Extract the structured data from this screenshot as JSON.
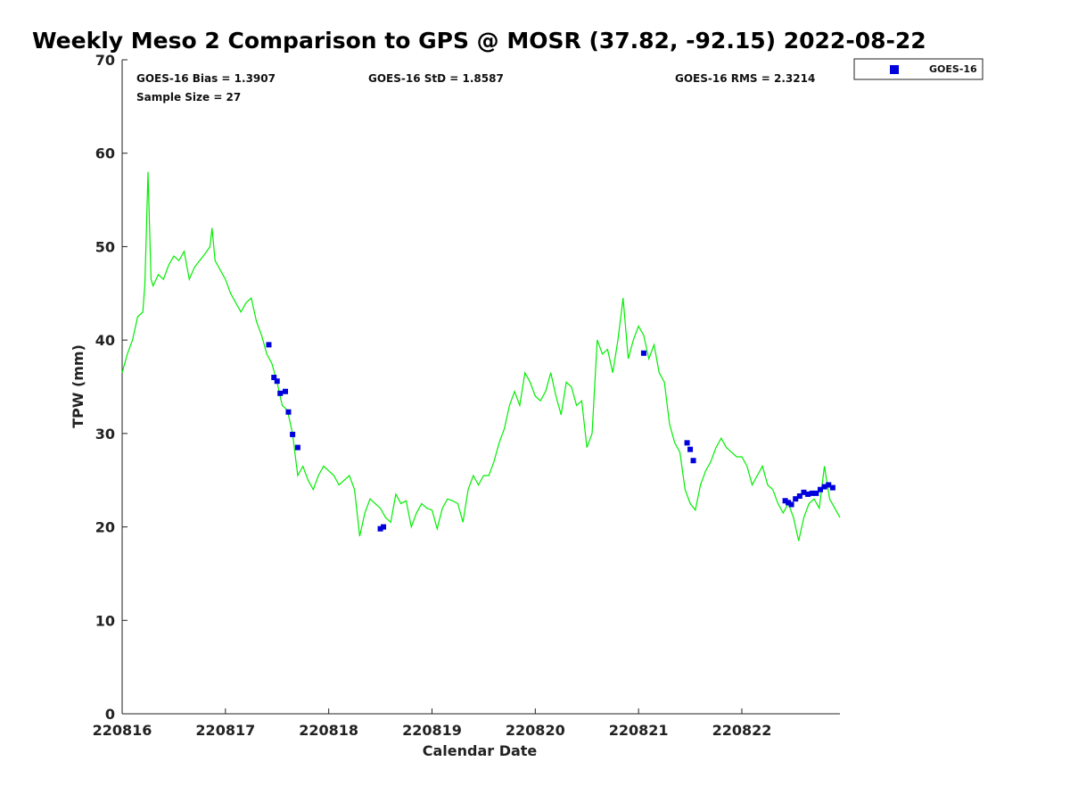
{
  "chart_data": {
    "type": "scatter",
    "title": "Weekly Meso 2 Comparison to GPS @ MOSR (37.82, -92.15) 2022-08-22",
    "xlabel": "Calendar Date",
    "ylabel": "TPW (mm)",
    "xlim": [
      0,
      6.95
    ],
    "ylim": [
      0,
      70
    ],
    "x_tick_labels": [
      "220816",
      "220817",
      "220818",
      "220819",
      "220820",
      "220821",
      "220822"
    ],
    "x_tick_values": [
      0,
      1,
      2,
      3,
      4,
      5,
      6
    ],
    "y_ticks": [
      0,
      10,
      20,
      30,
      40,
      50,
      60,
      70
    ],
    "stats": {
      "bias": "GOES-16 Bias = 1.3907",
      "std": "GOES-16 StD = 1.8587",
      "rms": "GOES-16 RMS = 2.3214",
      "sample": "Sample Size = 27"
    },
    "legend": {
      "placement": "top-right",
      "label": "GOES-16"
    },
    "colors": {
      "gps_line": "#00ee00",
      "goes_marker": "#0000dd"
    },
    "gps_series": {
      "x": [
        0.0,
        0.05,
        0.1,
        0.15,
        0.2,
        0.22,
        0.25,
        0.28,
        0.3,
        0.35,
        0.4,
        0.45,
        0.5,
        0.55,
        0.6,
        0.65,
        0.7,
        0.75,
        0.8,
        0.85,
        0.87,
        0.9,
        0.95,
        1.0,
        1.05,
        1.1,
        1.15,
        1.2,
        1.25,
        1.3,
        1.35,
        1.4,
        1.45,
        1.5,
        1.55,
        1.6,
        1.65,
        1.7,
        1.75,
        1.8,
        1.85,
        1.9,
        1.95,
        2.0,
        2.05,
        2.1,
        2.15,
        2.2,
        2.25,
        2.3,
        2.35,
        2.4,
        2.45,
        2.5,
        2.55,
        2.6,
        2.65,
        2.7,
        2.75,
        2.8,
        2.85,
        2.9,
        2.95,
        3.0,
        3.05,
        3.1,
        3.15,
        3.2,
        3.25,
        3.3,
        3.35,
        3.4,
        3.45,
        3.5,
        3.55,
        3.6,
        3.65,
        3.7,
        3.75,
        3.8,
        3.85,
        3.9,
        3.95,
        4.0,
        4.05,
        4.1,
        4.15,
        4.2,
        4.25,
        4.3,
        4.35,
        4.4,
        4.45,
        4.5,
        4.55,
        4.6,
        4.65,
        4.7,
        4.75,
        4.8,
        4.85,
        4.9,
        4.95,
        5.0,
        5.05,
        5.1,
        5.15,
        5.2,
        5.25,
        5.3,
        5.35,
        5.4,
        5.45,
        5.5,
        5.55,
        5.6,
        5.65,
        5.7,
        5.75,
        5.8,
        5.85,
        5.9,
        5.95,
        6.0,
        6.05,
        6.1,
        6.15,
        6.2,
        6.25,
        6.3,
        6.35,
        6.4,
        6.45,
        6.5,
        6.55,
        6.6,
        6.65,
        6.7,
        6.75,
        6.8,
        6.85,
        6.9,
        6.95
      ],
      "y": [
        36.5,
        38.5,
        40.0,
        42.5,
        43.0,
        46.0,
        58.0,
        46.5,
        45.8,
        47.0,
        46.5,
        48.0,
        49.0,
        48.5,
        49.5,
        46.5,
        47.8,
        48.5,
        49.2,
        50.0,
        52.0,
        48.5,
        47.5,
        46.5,
        45.0,
        44.0,
        43.0,
        44.0,
        44.5,
        42.0,
        40.5,
        38.5,
        37.5,
        35.5,
        33.0,
        32.5,
        30.0,
        25.5,
        26.5,
        25.0,
        24.0,
        25.5,
        26.5,
        26.0,
        25.5,
        24.5,
        25.0,
        25.5,
        24.0,
        19.0,
        21.5,
        23.0,
        22.5,
        22.0,
        21.0,
        20.5,
        23.5,
        22.5,
        22.8,
        20.0,
        21.5,
        22.5,
        22.0,
        21.8,
        19.8,
        22.0,
        23.0,
        22.8,
        22.5,
        20.5,
        24.0,
        25.5,
        24.5,
        25.5,
        25.5,
        27.0,
        29.0,
        30.5,
        33.0,
        34.5,
        33.0,
        36.5,
        35.5,
        34.0,
        33.5,
        34.5,
        36.5,
        34.0,
        32.0,
        35.5,
        35.0,
        33.0,
        33.5,
        28.5,
        30.0,
        40.0,
        38.5,
        39.0,
        36.5,
        40.0,
        44.5,
        38.0,
        40.0,
        41.5,
        40.5,
        38.0,
        39.5,
        36.5,
        35.5,
        31.0,
        29.0,
        28.0,
        24.0,
        22.5,
        21.8,
        24.5,
        26.0,
        27.0,
        28.5,
        29.5,
        28.5,
        28.0,
        27.5,
        27.5,
        26.5,
        24.5,
        25.5,
        26.5,
        24.5,
        24.0,
        22.5,
        21.5,
        22.5,
        21.0,
        18.5,
        21.0,
        22.5,
        23.0,
        22.0,
        26.5,
        23.0,
        22.0,
        21.0
      ]
    },
    "goes_series": {
      "name": "GOES-16",
      "x": [
        1.42,
        1.47,
        1.5,
        1.53,
        1.58,
        1.61,
        1.65,
        1.7,
        2.5,
        2.53,
        5.05,
        5.47,
        5.5,
        5.53,
        6.42,
        6.45,
        6.48,
        6.52,
        6.56,
        6.6,
        6.64,
        6.68,
        6.72,
        6.76,
        6.8,
        6.84,
        6.88
      ],
      "y": [
        39.5,
        36.0,
        35.6,
        34.3,
        34.5,
        32.3,
        29.9,
        28.5,
        19.8,
        20.0,
        38.6,
        29.0,
        28.3,
        27.1,
        22.8,
        22.6,
        22.4,
        23.0,
        23.3,
        23.7,
        23.5,
        23.6,
        23.6,
        24.0,
        24.3,
        24.5,
        24.2
      ]
    }
  }
}
